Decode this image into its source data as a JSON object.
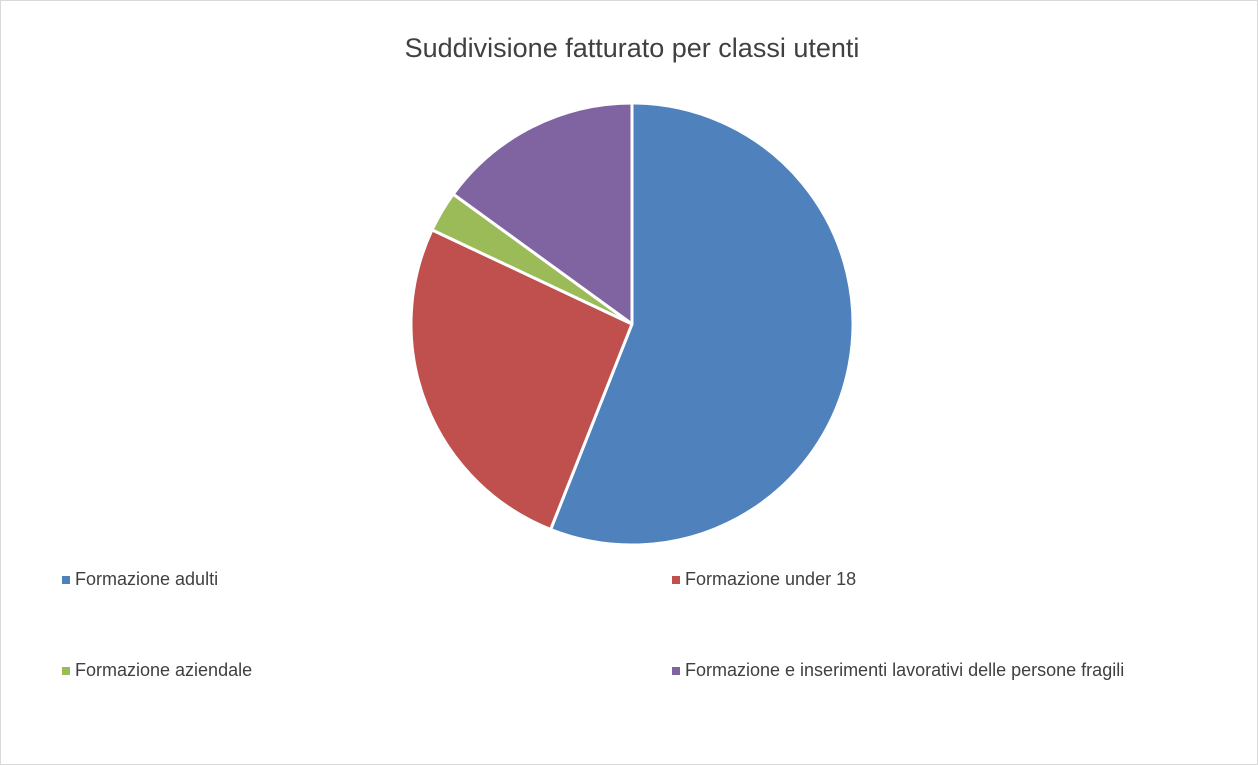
{
  "chart_data": {
    "type": "pie",
    "title": "Suddivisione fatturato per classi utenti",
    "categories": [
      "Formazione adulti",
      "Formazione under 18",
      "Formazione aziendale",
      "Formazione e inserimenti lavorativi delle persone fragili"
    ],
    "values": [
      56,
      26,
      3,
      15
    ],
    "colors": [
      "#4f81bd",
      "#c0504d",
      "#9bbb59",
      "#8064a2"
    ],
    "legend": "bottom"
  }
}
